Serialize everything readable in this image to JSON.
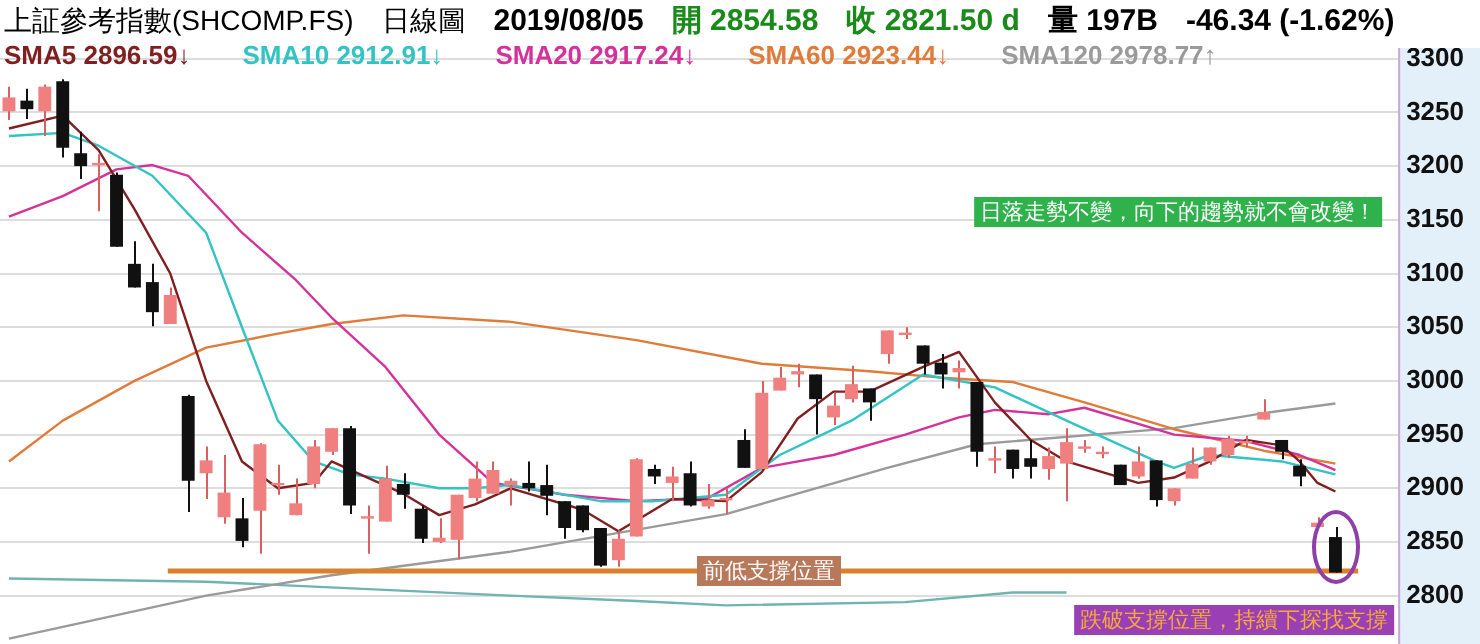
{
  "chart_data": {
    "type": "candlestick",
    "title": "上証參考指數(SHCOMP.FS)",
    "subtitle": "日線圖",
    "annotations": [
      "2019/08/05",
      "開 2854.58",
      "收 2821.50 d",
      "量 197B",
      "-46.34 (-1.62%)",
      "日落走勢不變，向下的趨勢就不會改變！",
      "跌破支撐位置，持續下探找支撐"
    ],
    "categories": [
      null,
      null,
      null,
      null,
      null,
      null,
      null,
      null,
      null,
      null,
      null,
      null,
      null,
      null,
      null,
      null,
      null,
      null,
      null,
      null,
      null,
      null,
      null,
      null,
      null,
      null,
      null,
      null,
      null,
      null,
      null,
      null,
      null,
      null,
      null,
      null,
      null,
      null,
      null,
      null,
      null,
      null,
      null,
      null,
      null,
      null,
      null,
      null,
      null,
      null,
      null,
      null,
      null,
      null,
      null,
      null,
      null,
      null,
      null,
      null,
      null,
      null,
      null,
      null,
      null,
      null,
      null,
      null,
      null,
      null,
      null,
      null,
      null,
      null,
      null,
      null,
      null,
      null
    ],
    "ohlc": [
      [
        3251,
        3274,
        3243,
        3264
      ],
      [
        3261,
        3272,
        3244,
        3253
      ],
      [
        3251,
        3276,
        3228,
        3274
      ],
      [
        3279,
        3281,
        3208,
        3217
      ],
      [
        3212,
        3232,
        3188,
        3200
      ],
      [
        3203,
        3211,
        3158,
        3203
      ],
      [
        3192,
        3194,
        3125,
        3125
      ],
      [
        3109,
        3130,
        3087,
        3087
      ],
      [
        3092,
        3109,
        3051,
        3064
      ],
      [
        3053,
        3087,
        3053,
        3080
      ],
      [
        2986,
        2987,
        2878,
        2907
      ],
      [
        2914,
        2939,
        2890,
        2926
      ],
      [
        2873,
        2931,
        2867,
        2896
      ],
      [
        2872,
        2891,
        2845,
        2851
      ],
      [
        2879,
        2942,
        2839,
        2941
      ],
      [
        2905,
        2922,
        2894,
        2905
      ],
      [
        2875,
        2909,
        2875,
        2886
      ],
      [
        2904,
        2945,
        2900,
        2939
      ],
      [
        2934,
        2956,
        2931,
        2956
      ],
      [
        2956,
        2958,
        2876,
        2884
      ],
      [
        2874,
        2884,
        2839,
        2874
      ],
      [
        2869,
        2921,
        2869,
        2909
      ],
      [
        2904,
        2914,
        2881,
        2894
      ],
      [
        2881,
        2884,
        2849,
        2853
      ],
      [
        2850,
        2872,
        2849,
        2854
      ],
      [
        2852,
        2894,
        2834,
        2894
      ],
      [
        2891,
        2925,
        2888,
        2909
      ],
      [
        2895,
        2925,
        2895,
        2917
      ],
      [
        2903,
        2909,
        2884,
        2907
      ],
      [
        2905,
        2925,
        2897,
        2900
      ],
      [
        2903,
        2922,
        2875,
        2893
      ],
      [
        2888,
        2888,
        2853,
        2863
      ],
      [
        2884,
        2884,
        2859,
        2861
      ],
      [
        2863,
        2863,
        2827,
        2828
      ],
      [
        2833,
        2861,
        2827,
        2853
      ],
      [
        2855,
        2928,
        2855,
        2927
      ],
      [
        2918,
        2922,
        2904,
        2911
      ],
      [
        2905,
        2920,
        2888,
        2911
      ],
      [
        2914,
        2925,
        2883,
        2884
      ],
      [
        2883,
        2904,
        2881,
        2889
      ],
      [
        2891,
        2900,
        2876,
        2891
      ],
      [
        2945,
        2955,
        2919,
        2919
      ],
      [
        2918,
        3000,
        2918,
        2989
      ],
      [
        2991,
        3013,
        2991,
        3003
      ],
      [
        3006,
        3016,
        2994,
        3009
      ],
      [
        3006,
        3006,
        2950,
        2983
      ],
      [
        2966,
        2989,
        2959,
        2977
      ],
      [
        2983,
        3014,
        2980,
        2997
      ],
      [
        2993,
        2993,
        2963,
        2980
      ],
      [
        3025,
        3047,
        3016,
        3047
      ],
      [
        3044,
        3050,
        3039,
        3045
      ],
      [
        3033,
        3033,
        3006,
        3016
      ],
      [
        3017,
        3025,
        2993,
        3006
      ],
      [
        3008,
        3019,
        2993,
        3012
      ],
      [
        2999,
        2999,
        2920,
        2934
      ],
      [
        2928,
        2939,
        2914,
        2928
      ],
      [
        2936,
        2936,
        2909,
        2918
      ],
      [
        2928,
        2945,
        2909,
        2920
      ],
      [
        2918,
        2938,
        2908,
        2930
      ],
      [
        2923,
        2956,
        2888,
        2943
      ],
      [
        2939,
        2945,
        2933,
        2939
      ],
      [
        2934,
        2939,
        2928,
        2934
      ],
      [
        2922,
        2922,
        2903,
        2903
      ],
      [
        2911,
        2939,
        2909,
        2925
      ],
      [
        2926,
        2926,
        2883,
        2889
      ],
      [
        2888,
        2900,
        2884,
        2900
      ],
      [
        2909,
        2938,
        2909,
        2923
      ],
      [
        2925,
        2938,
        2922,
        2938
      ],
      [
        2931,
        2949,
        2928,
        2946
      ],
      [
        2944,
        2949,
        2938,
        2944
      ],
      [
        2964,
        2983,
        2964,
        2971
      ],
      [
        2945,
        2945,
        2927,
        2934
      ],
      [
        2921,
        2927,
        2902,
        2911
      ],
      [
        2864,
        2873,
        2864,
        2868
      ],
      [
        2854.58,
        2864,
        2821.5,
        2821.5
      ],
      null,
      null,
      null
    ],
    "series": [
      {
        "name": "SMA5 2896.59↓",
        "color": "#7f1f1f",
        "type": "line",
        "values": [
          3235,
          null,
          null,
          3247,
          null,
          3215,
          null,
          3160,
          null,
          3100,
          null,
          3000,
          null,
          2925,
          null,
          2900,
          null,
          2905,
          2925,
          null,
          2910,
          null,
          2895,
          null,
          2875,
          null,
          2885,
          null,
          2900,
          null,
          null,
          null,
          2880,
          null,
          2860,
          null,
          null,
          2890,
          null,
          null,
          2888,
          null,
          2915,
          null,
          2965,
          null,
          2990,
          null,
          2990,
          null,
          null,
          3013,
          null,
          3027,
          null,
          2980,
          null,
          2945,
          null,
          2925,
          null,
          2915,
          null,
          2905,
          null,
          2910,
          null,
          2925,
          null,
          2945,
          null,
          2940,
          2925,
          2905,
          2897,
          null,
          null,
          null
        ]
      },
      {
        "name": "SMA10 2912.91↓",
        "color": "#33c3c3",
        "type": "line",
        "values": [
          3228,
          null,
          null,
          3231,
          null,
          3219,
          null,
          null,
          3191,
          null,
          null,
          3138,
          null,
          3050,
          null,
          2963,
          null,
          2925,
          null,
          2913,
          null,
          2909,
          null,
          null,
          2900,
          null,
          2900,
          null,
          2903,
          null,
          null,
          null,
          null,
          2888,
          null,
          null,
          2888,
          null,
          null,
          null,
          2894,
          null,
          null,
          2931,
          null,
          null,
          null,
          2963,
          null,
          null,
          null,
          3006,
          null,
          null,
          null,
          2994,
          null,
          null,
          null,
          2963,
          null,
          null,
          null,
          null,
          2925,
          2919,
          null,
          2931,
          null,
          null,
          null,
          2925,
          null,
          null,
          2913,
          null,
          null,
          null
        ]
      },
      {
        "name": "SMA20 2917.24↓",
        "color": "#d4329b",
        "type": "line",
        "values": [
          3153,
          null,
          null,
          3172,
          null,
          null,
          3197,
          null,
          3201,
          null,
          3191,
          null,
          null,
          3138,
          null,
          null,
          3094,
          null,
          3059,
          null,
          null,
          3013,
          null,
          null,
          2950,
          null,
          null,
          2905,
          null,
          null,
          null,
          2894,
          null,
          null,
          null,
          2888,
          null,
          null,
          null,
          2891,
          null,
          null,
          2919,
          null,
          null,
          null,
          2931,
          null,
          null,
          null,
          2950,
          null,
          null,
          2966,
          null,
          2973,
          null,
          null,
          2969,
          null,
          2975,
          null,
          null,
          null,
          null,
          2950,
          null,
          null,
          null,
          2944,
          null,
          null,
          2931,
          null,
          2917,
          null,
          null,
          null
        ]
      },
      {
        "name": "SMA60 2923.44↓",
        "color": "#e07b39",
        "type": "line",
        "values": [
          2925,
          null,
          null,
          2963,
          null,
          null,
          null,
          3000,
          null,
          null,
          null,
          3031,
          null,
          null,
          null,
          3044,
          null,
          null,
          3053,
          null,
          null,
          null,
          3061,
          null,
          null,
          null,
          null,
          null,
          3055,
          null,
          null,
          null,
          null,
          null,
          null,
          3038,
          null,
          null,
          null,
          null,
          null,
          null,
          3016,
          null,
          null,
          null,
          null,
          null,
          3009,
          null,
          null,
          null,
          3003,
          null,
          null,
          null,
          2999,
          null,
          null,
          null,
          2980,
          null,
          null,
          null,
          null,
          2955,
          null,
          null,
          null,
          null,
          2935,
          null,
          null,
          null,
          2923,
          null,
          null,
          null
        ]
      },
      {
        "name": "SMA120 2978.77↑",
        "color": "#9a9a9a",
        "type": "line",
        "values": [
          2760,
          null,
          null,
          null,
          null,
          null,
          null,
          null,
          null,
          null,
          null,
          2800,
          null,
          null,
          null,
          null,
          null,
          null,
          2819,
          null,
          null,
          null,
          null,
          null,
          null,
          null,
          null,
          null,
          2841,
          null,
          null,
          null,
          null,
          null,
          null,
          null,
          null,
          null,
          null,
          null,
          2876,
          null,
          null,
          null,
          null,
          null,
          null,
          null,
          null,
          2919,
          null,
          null,
          null,
          null,
          2941,
          null,
          null,
          null,
          null,
          null,
          null,
          null,
          null,
          null,
          null,
          2956,
          null,
          null,
          null,
          null,
          2970,
          null,
          null,
          null,
          2979,
          null,
          null,
          null
        ]
      },
      {
        "color": "#6fb3b3",
        "type": "line",
        "values": [
          2816,
          null,
          null,
          null,
          null,
          null,
          null,
          null,
          null,
          null,
          null,
          2813,
          null,
          null,
          null,
          null,
          null,
          null,
          null,
          null,
          null,
          null,
          null,
          null,
          null,
          null,
          null,
          null,
          2800,
          null,
          null,
          null,
          null,
          null,
          null,
          2795,
          null,
          null,
          null,
          null,
          2791,
          null,
          null,
          null,
          null,
          null,
          null,
          null,
          null,
          null,
          2794,
          null,
          null,
          null,
          null,
          null,
          2803,
          null,
          null,
          2803,
          null,
          null,
          null,
          null,
          null,
          null,
          null,
          null,
          null,
          null,
          null,
          null,
          null,
          null,
          null,
          null,
          null,
          null
        ]
      }
    ],
    "ylim": [
      2755,
      3310
    ],
    "yticks": [
      2800,
      2850,
      2900,
      2950,
      3000,
      3050,
      3100,
      3150,
      3200,
      3250,
      3300
    ],
    "ref_lines": [
      {
        "axis": "y",
        "value": 2823,
        "label": "前低支撐位置",
        "color": "#d9822b"
      }
    ],
    "grid": "y",
    "legend": "top left",
    "tick_labels": "y",
    "marker": "none",
    "line_style": "solid"
  }
}
